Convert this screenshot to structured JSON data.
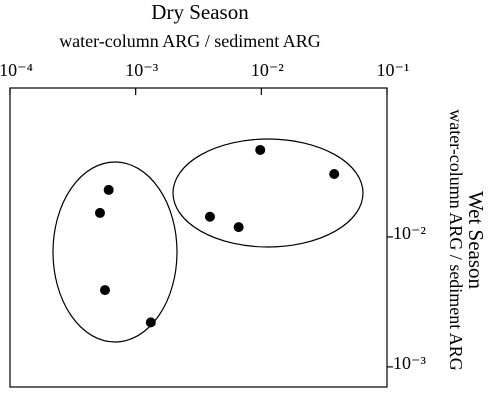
{
  "chart_data": {
    "type": "scatter",
    "title": "Dry Season",
    "x_label": "water-column ARG / sediment ARG",
    "y_title": "Wet Season",
    "y_label": "water-column ARG / sediment ARG",
    "xscale": "log",
    "yscale": "log",
    "xlim": [
      0.0001,
      0.1
    ],
    "xticks": [
      {
        "value": 0.0001,
        "label": "10⁻⁴"
      },
      {
        "value": 0.001,
        "label": "10⁻³"
      },
      {
        "value": 0.01,
        "label": "10⁻²"
      },
      {
        "value": 0.1,
        "label": "10⁻¹"
      }
    ],
    "ylim": [
      0.0007,
      0.14
    ],
    "yticks": [
      {
        "value": 0.001,
        "label": "10⁻³"
      },
      {
        "value": 0.01,
        "label": "10⁻²"
      }
    ],
    "color": "#000000",
    "x": [
      0.00061,
      0.00052,
      0.00057,
      0.00132,
      0.0039,
      0.0066,
      0.0098,
      0.038
    ],
    "values": [
      0.023,
      0.0153,
      0.0039,
      0.0022,
      0.0143,
      0.0119,
      0.0467,
      0.0305
    ]
  }
}
